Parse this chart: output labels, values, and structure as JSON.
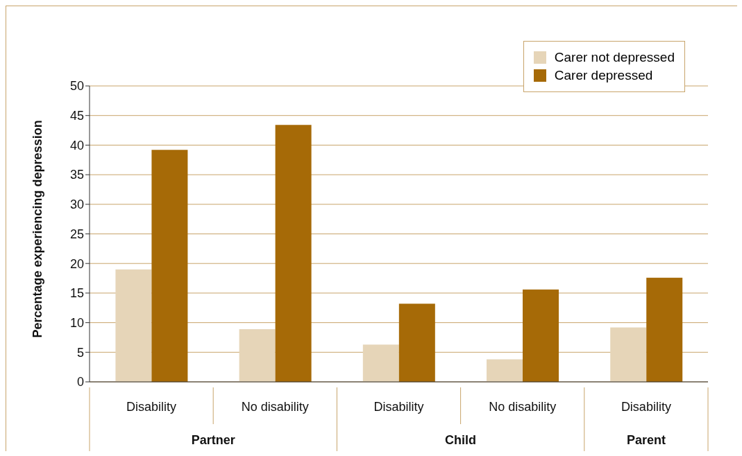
{
  "chart_data": {
    "type": "bar",
    "ylabel": "Percentage experiencing depression",
    "categories": [
      "Disability",
      "No disability",
      "Disability",
      "No disability",
      "Disability"
    ],
    "series": [
      {
        "name": "Carer not depressed",
        "color": "#e6d5b8",
        "values": [
          19,
          8.9,
          6.3,
          3.8,
          9.2
        ]
      },
      {
        "name": "Carer depressed",
        "color": "#a66a07",
        "values": [
          39.2,
          43.4,
          13.2,
          15.6,
          17.6
        ]
      }
    ],
    "annotations": [
      "Partner",
      "Child",
      "Parent"
    ],
    "ylim": [
      0,
      50
    ],
    "yticks": [
      0,
      5,
      10,
      15,
      20,
      25,
      30,
      35,
      40,
      45,
      50
    ],
    "grid": "y",
    "legend": "top right"
  }
}
